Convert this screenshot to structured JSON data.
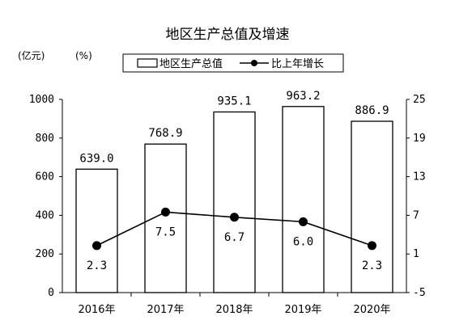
{
  "chart_data": {
    "type": "bar",
    "title": "地区生产总值及增速",
    "categories": [
      "2016年",
      "2017年",
      "2018年",
      "2019年",
      "2020年"
    ],
    "series": [
      {
        "name": "地区生产总值",
        "type": "bar",
        "axis": "left",
        "values": [
          639.0,
          768.9,
          935.1,
          963.2,
          886.9
        ],
        "labels": [
          "639.0",
          "768.9",
          "935.1",
          "963.2",
          "886.9"
        ]
      },
      {
        "name": "比上年增长",
        "type": "line",
        "axis": "right",
        "values": [
          2.3,
          7.5,
          6.7,
          6.0,
          2.3
        ],
        "labels": [
          "2.3",
          "7.5",
          "6.7",
          "6.0",
          "2.3"
        ]
      }
    ],
    "left_axis": {
      "unit": "(亿元)",
      "ylim": [
        0,
        1000
      ],
      "ticks": [
        0,
        200,
        400,
        600,
        800,
        1000
      ],
      "tick_labels": [
        "0",
        "200",
        "400",
        "600",
        "800",
        "1000"
      ]
    },
    "right_axis": {
      "unit": "(%)",
      "ylim": [
        -5,
        25
      ],
      "ticks": [
        -5,
        1,
        7,
        13,
        19,
        25
      ],
      "tick_labels": [
        "-5",
        "1",
        "7",
        "13",
        "19",
        "25"
      ]
    },
    "legend": {
      "placement": "top-center"
    },
    "grid": false,
    "colors": {
      "bar_fill": "#ffffff",
      "bar_stroke": "#000000",
      "line": "#000000",
      "marker": "#000000"
    }
  }
}
